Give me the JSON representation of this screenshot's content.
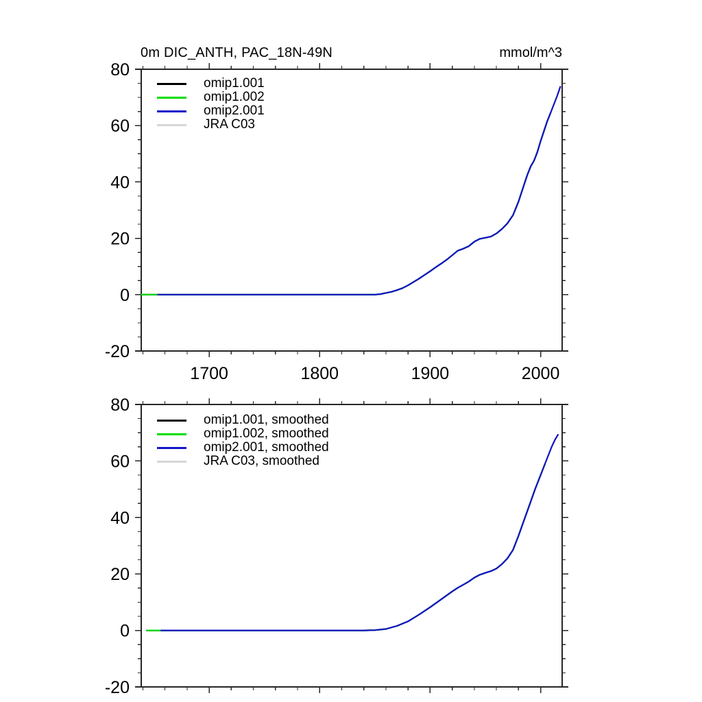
{
  "figure": {
    "background": "#ffffff",
    "axis_color": "#262626",
    "text_color": "#000000"
  },
  "chart_data": [
    {
      "type": "line",
      "title": "0m DIC_ANTH, PAC_18N-49N",
      "unit_label": "mmol/m^3",
      "xlabel": "",
      "ylabel": "",
      "xlim": [
        1638.5,
        2019.5
      ],
      "ylim": [
        -20,
        80
      ],
      "xticks_major": [
        1700,
        1800,
        1900,
        2000
      ],
      "xtick_minor_step": 20,
      "yticks_major": [
        -20,
        0,
        20,
        40,
        60,
        80
      ],
      "ytick_minor_step": 5,
      "grid": false,
      "legend_position": "upper-left-inside",
      "x": [
        1638,
        1650,
        1660,
        1680,
        1700,
        1720,
        1740,
        1760,
        1780,
        1800,
        1820,
        1840,
        1850,
        1855,
        1860,
        1865,
        1870,
        1875,
        1880,
        1885,
        1890,
        1895,
        1900,
        1905,
        1910,
        1915,
        1920,
        1925,
        1930,
        1935,
        1940,
        1945,
        1950,
        1955,
        1960,
        1965,
        1970,
        1975,
        1980,
        1985,
        1988,
        1991,
        1994,
        1997,
        2000,
        2003,
        2006,
        2009,
        2012,
        2015,
        2018
      ],
      "y": [
        0,
        0,
        0,
        0,
        0,
        0,
        0,
        0,
        0,
        0,
        0,
        0,
        0,
        0.2,
        0.6,
        1.0,
        1.6,
        2.3,
        3.3,
        4.5,
        5.7,
        7.0,
        8.3,
        9.7,
        11.0,
        12.4,
        14.0,
        15.6,
        16.3,
        17.2,
        18.8,
        19.8,
        20.2,
        20.6,
        21.7,
        23.3,
        25.3,
        28.2,
        33.0,
        39.0,
        42.5,
        45.5,
        47.5,
        50.5,
        54.5,
        58.0,
        61.5,
        64.5,
        67.5,
        70.5,
        74.0
      ],
      "series": [
        {
          "name": "JRA C03",
          "color": "#d6d6d6",
          "start": 1653,
          "end": 2018
        },
        {
          "name": "omip1.001",
          "color": "#000000",
          "start": 1638,
          "end": 2009
        },
        {
          "name": "omip1.002",
          "color": "#00dd00",
          "start": 1638,
          "end": 2009
        },
        {
          "name": "omip2.001",
          "color": "#1414c8",
          "start": 1653,
          "end": 2018
        }
      ],
      "legend": [
        {
          "label": "omip1.001",
          "color": "#000000"
        },
        {
          "label": "omip1.002",
          "color": "#00dd00"
        },
        {
          "label": "omip2.001",
          "color": "#1414c8"
        },
        {
          "label": "JRA C03",
          "color": "#d6d6d6"
        }
      ]
    },
    {
      "type": "line",
      "title": "",
      "unit_label": "",
      "xlabel": "",
      "ylabel": "",
      "xlim": [
        1638.5,
        2019.5
      ],
      "ylim": [
        -20,
        80
      ],
      "xticks_major": [
        1700,
        1800,
        1900,
        2000
      ],
      "xtick_minor_step": 20,
      "yticks_major": [
        -20,
        0,
        20,
        40,
        60,
        80
      ],
      "ytick_minor_step": 5,
      "grid": false,
      "legend_position": "upper-left-inside",
      "x": [
        1643,
        1650,
        1660,
        1680,
        1700,
        1720,
        1740,
        1760,
        1780,
        1800,
        1820,
        1840,
        1850,
        1860,
        1870,
        1880,
        1890,
        1900,
        1910,
        1920,
        1925,
        1930,
        1935,
        1940,
        1945,
        1950,
        1955,
        1960,
        1965,
        1970,
        1975,
        1980,
        1985,
        1990,
        1995,
        2000,
        2005,
        2010,
        2013,
        2016
      ],
      "y": [
        0,
        0,
        0,
        0,
        0,
        0,
        0,
        0,
        0,
        0,
        0,
        0,
        0.1,
        0.5,
        1.6,
        3.2,
        5.6,
        8.2,
        11.0,
        13.8,
        15.1,
        16.2,
        17.3,
        18.7,
        19.7,
        20.4,
        21.0,
        21.9,
        23.5,
        25.5,
        28.5,
        33.5,
        39.0,
        44.5,
        50.0,
        55.0,
        60.0,
        65.0,
        67.5,
        69.5
      ],
      "series": [
        {
          "name": "JRA C03, smoothed",
          "color": "#d6d6d6",
          "start": 1656,
          "end": 2016
        },
        {
          "name": "omip1.001, smoothed",
          "color": "#000000",
          "start": 1643,
          "end": 2004
        },
        {
          "name": "omip1.002, smoothed",
          "color": "#00dd00",
          "start": 1643,
          "end": 2004
        },
        {
          "name": "omip2.001, smoothed",
          "color": "#1414c8",
          "start": 1656,
          "end": 2016
        }
      ],
      "legend": [
        {
          "label": "omip1.001, smoothed",
          "color": "#000000"
        },
        {
          "label": "omip1.002, smoothed",
          "color": "#00dd00"
        },
        {
          "label": "omip2.001, smoothed",
          "color": "#1414c8"
        },
        {
          "label": "JRA C03, smoothed",
          "color": "#d6d6d6"
        }
      ]
    }
  ]
}
